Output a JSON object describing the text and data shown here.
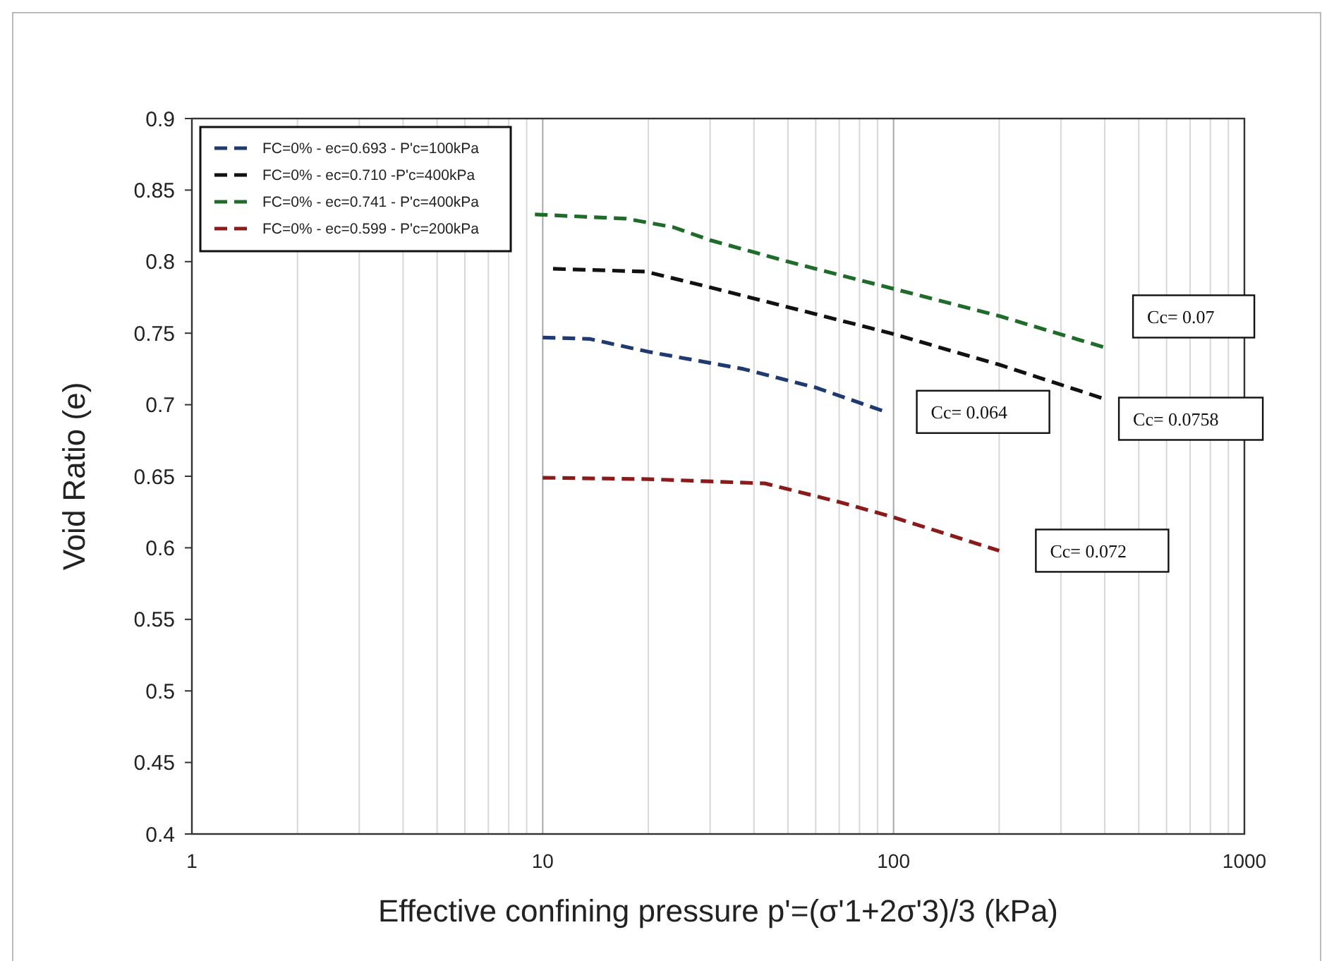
{
  "chart_data": {
    "type": "line",
    "xlabel": "Effective confining pressure  p'=(σ'1+2σ'3)/3  (kPa)",
    "ylabel": "Void Ratio (e)",
    "log": "x",
    "xlim": [
      1,
      1000
    ],
    "ylim": [
      0.4,
      0.9
    ],
    "xticks": [
      1,
      {
        "value": 2,
        "label": null
      },
      {
        "value": 3,
        "label": null
      },
      {
        "value": 4,
        "label": null
      },
      {
        "value": 5,
        "label": null
      },
      {
        "value": 6,
        "label": null
      },
      {
        "value": 7,
        "label": null
      },
      {
        "value": 8,
        "label": null
      },
      {
        "value": 9,
        "label": null
      },
      10,
      {
        "value": 20,
        "label": null
      },
      {
        "value": 30,
        "label": null
      },
      {
        "value": 40,
        "label": null
      },
      {
        "value": 50,
        "label": null
      },
      {
        "value": 60,
        "label": null
      },
      {
        "value": 70,
        "label": null
      },
      {
        "value": 80,
        "label": null
      },
      {
        "value": 90,
        "label": null
      },
      100,
      {
        "value": 200,
        "label": null
      },
      {
        "value": 300,
        "label": null
      },
      {
        "value": 400,
        "label": null
      },
      {
        "value": 500,
        "label": null
      },
      {
        "value": 600,
        "label": null
      },
      {
        "value": 700,
        "label": null
      },
      {
        "value": 800,
        "label": null
      },
      {
        "value": 900,
        "label": null
      },
      1000
    ],
    "yticks": [
      0.4,
      0.45,
      0.5,
      0.55,
      0.6,
      0.65,
      0.7,
      0.75,
      0.8,
      0.85,
      0.9
    ],
    "grid": "x",
    "legend": "top left",
    "line_style": "dashed",
    "marker": "none",
    "series": [
      {
        "name": "FC=0% - ec=0.693 - P'c=100kPa",
        "color": "#1f3a70",
        "x": [
          10,
          13.6,
          20,
          37.3,
          60,
          95
        ],
        "values": [
          0.747,
          0.746,
          0.737,
          0.725,
          0.712,
          0.695
        ]
      },
      {
        "name": "FC=0% - ec=0.710 -P'c=400kPa",
        "color": "#111111",
        "x": [
          10.7,
          19.7,
          30,
          50.4,
          98,
          200,
          400
        ],
        "values": [
          0.795,
          0.793,
          0.782,
          0.768,
          0.75,
          0.728,
          0.704
        ]
      },
      {
        "name": "FC=0% - ec=0.741 - P'c=400kPa",
        "color": "#1e6b2a",
        "x": [
          9.5,
          17.3,
          23.6,
          30,
          50,
          93,
          200,
          400
        ],
        "values": [
          0.833,
          0.83,
          0.824,
          0.815,
          0.8,
          0.783,
          0.762,
          0.74
        ]
      },
      {
        "name": "FC=0% - ec=0.599 - P'c=200kPa",
        "color": "#8b1a1a",
        "x": [
          10,
          20,
          43,
          70,
          98,
          200
        ],
        "values": [
          0.649,
          0.648,
          0.645,
          0.632,
          0.622,
          0.598
        ]
      }
    ],
    "annotations": [
      {
        "text": "Cc= 0.064",
        "x": 95,
        "y": 0.695
      },
      {
        "text": "Cc= 0.0758",
        "x": 400,
        "y": 0.704
      },
      {
        "text": "Cc= 0.07",
        "x": 400,
        "y": 0.74
      },
      {
        "text": "Cc= 0.072",
        "x": 200,
        "y": 0.598
      }
    ]
  }
}
